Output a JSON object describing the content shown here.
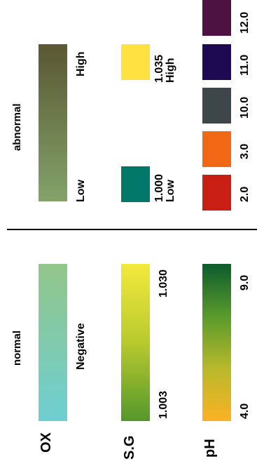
{
  "sections": {
    "normal": "normal",
    "abnormal": "abnormal"
  },
  "tests": {
    "ox": {
      "label": "OX",
      "value": "Negative",
      "gradient": [
        "#6ecfd2",
        "#92c589"
      ]
    },
    "sg": {
      "label": "S.G",
      "min": "1.003",
      "max": "1.030",
      "gradient": [
        "#55972c",
        "#b8ca2e",
        "#f4e93c"
      ]
    },
    "ph": {
      "label": "pH",
      "min": "4.0",
      "max": "9.0",
      "gradient": [
        "#fdb125",
        "#b8b92b",
        "#5a9a2c",
        "#0c5c2c"
      ]
    }
  },
  "abnormal": {
    "ox": {
      "low": "Low",
      "high": "High",
      "gradient": [
        "#83a36a",
        "#5a5732"
      ]
    },
    "sg": {
      "low": {
        "value": "1.000",
        "label": "Low",
        "color": "#01786a"
      },
      "high": {
        "value": "1.035",
        "label": "High",
        "color": "#fde13f"
      }
    },
    "ph": [
      {
        "value": "2.0",
        "color": "#c81e14"
      },
      {
        "value": "3.0",
        "color": "#f06813"
      },
      {
        "value": "10.0",
        "color": "#3f464a"
      },
      {
        "value": "11.0",
        "color": "#1e0a52"
      },
      {
        "value": "12.0",
        "color": "#4d1142"
      }
    ]
  },
  "colors": {
    "divider": "#000000",
    "text": "#000000"
  }
}
